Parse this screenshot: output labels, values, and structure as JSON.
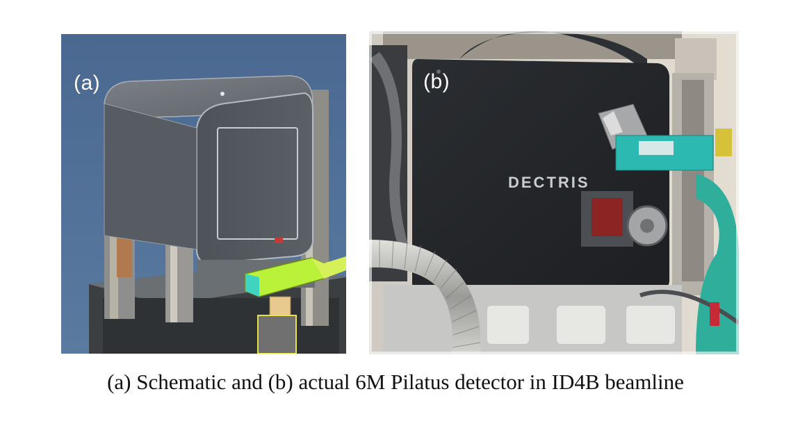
{
  "figure": {
    "panel_a": {
      "label": "(a)",
      "image": "cad-schematic-of-detector"
    },
    "panel_b": {
      "label": "(b)",
      "image": "photo-of-detector-on-beamline",
      "brand_text": "DECTRIS"
    },
    "caption": "(a) Schematic and (b) actual 6M Pilatus detector in ID4B beamline"
  },
  "colors": {
    "cad_background": "#4f6f93",
    "cad_body": "#5d6469",
    "cad_highlight": "#b9f238",
    "detector_black": "#23262a",
    "teal_mount": "#2bb9b1"
  }
}
